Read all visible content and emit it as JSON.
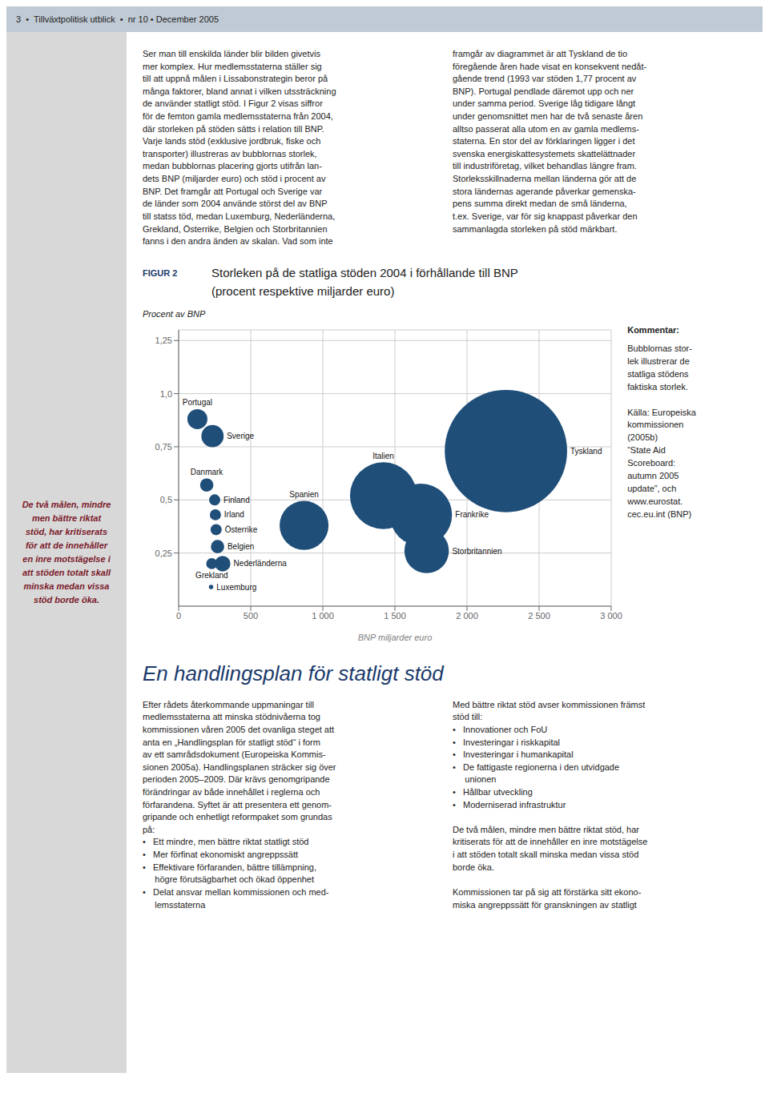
{
  "chart_data": {
    "type": "scatter",
    "title": "Storleken på de statliga stöden 2004 i förhållande till BNP",
    "subtitle": "(procent respektive miljarder euro)",
    "xlabel": "BNP miljarder euro",
    "ylabel": "Procent av BNP",
    "xlim": [
      0,
      3000
    ],
    "ylim": [
      0,
      1.3
    ],
    "xticks": [
      0,
      500,
      {
        "value": 1000,
        "label": "1 000"
      },
      {
        "value": 1500,
        "label": "1 500"
      },
      {
        "value": 2000,
        "label": "2 000"
      },
      {
        "value": 2500,
        "label": "2 500"
      },
      {
        "value": 3000,
        "label": "3 000"
      }
    ],
    "yticks": [
      {
        "value": 0.25,
        "label": "0,25"
      },
      {
        "value": 0.5,
        "label": "0,5"
      },
      {
        "value": 0.75,
        "label": "0,75"
      },
      {
        "value": 1.0,
        "label": "1,0"
      },
      {
        "value": 1.25,
        "label": "1,25"
      }
    ],
    "grid": true,
    "color": "#1f4e79",
    "names": [
      "Portugal",
      "Sverige",
      "Danmark",
      "Finland",
      "Irland",
      "Österrike",
      "Belgien",
      "Grekland",
      "Nederländerna",
      "Luxemburg",
      "Spanien",
      "Italien",
      "Frankrike",
      "Storbritannien",
      "Tyskland"
    ],
    "x": [
      130,
      235,
      195,
      250,
      255,
      260,
      270,
      230,
      305,
      225,
      870,
      1420,
      1680,
      1720,
      2270
    ],
    "values": [
      0.88,
      0.8,
      0.57,
      0.5,
      0.43,
      0.36,
      0.28,
      0.2,
      0.2,
      0.09,
      0.38,
      0.52,
      0.43,
      0.26,
      0.73
    ],
    "sizes": [
      9,
      10,
      6,
      5,
      5,
      5,
      6,
      5,
      7,
      2,
      22,
      30,
      28,
      20,
      55
    ],
    "annotations": [
      "3  •  Tillväxtpolitisk utblick  •  nr 10 • December 2005",
      "De två målen, mindre\nmen bättre riktat\nstöd, har kritiserats\nför att de innehåller\nen inre motstägelse i\natt stöden totalt skall\nminska medan vissa\nstöd borde öka.",
      "Ser man till enskilda länder blir bilden givetvis\nmer komplex. Hur medlemsstaterna ställer sig\ntill att uppnå målen i Lissabonstrategin beror på\nmånga faktorer, bland annat i vilken utssträckning\nde använder statligt stöd. I Figur 2 visas siffror\nför de femton gamla medlemsstaterna från 2004,\ndär storleken på stöden sätts i relation till BNP.\nVarje lands stöd (exklusive jordbruk, fiske och\ntransporter) illustreras av bubblornas storlek,\nmedan bubblornas placering gjorts utifrån lan-\ndets BNP (miljarder euro) och stöd i procent av\nBNP. Det framgår att Portugal och Sverige var\nde länder som 2004 använde störst del av BNP\ntill statss töd, medan Luxemburg, Nederländerna,\nGrekland, Österrike, Belgien och Storbritannien\nfanns i den andra änden av skalan. Vad som inte",
      "framgår av diagrammet är att Tyskland de tio\nföregående åren hade visat en konsekvent nedåt-\ngående trend (1993 var stöden 1,77 procent av\nBNP). Portugal pendlade däremot upp och ner\nunder samma period. Sverige låg tidigare långt\nunder genomsnittet men har de två senaste åren\nalltso passerat alla utom en av gamla medlems-\nstaterna. En stor del av förklaringen ligger i det\nsvenska energiskattesystemets skattelättnader\ntill industriföretag, vilket behandlas längre fram.\nStorleksskillnaderna mellan länderna gör att de\nstora ländernas agerande påverkar gemenska-\npens summa direkt medan de små länderna,\nt.ex. Sverige, var för sig knappast påverkar den\nsammanlagda storleken på stöd märkbart.",
      "FIGUR 2",
      "Kommentar:",
      "Bubblornas stor-\nlek illustrerar de\nstatliga stödens\nfaktiska storlek.",
      "Källa: Europeiska\nkommissionen\n(2005b)\n“State Aid\nScoreboard:\nautumn 2005\nupdate”, och\nwww.eurostat.\ncec.eu.int (BNP)",
      "En handlingsplan för statligt stöd",
      "Efter rådets återkommande uppmaningar till\nmedlemsstaterna att minska stödnivåerna tog\nkommissionen våren 2005 det ovanliga steget att\nanta en „Handlingsplan för statligt stöd“ i form\nav ett samrådsdokument (Europeiska Kommis-\nsionen 2005a). Handlingsplanen sträcker sig över\nperioden 2005–2009. Där krävs genomgripande\nförändringar av både innehållet i reglerna och\nförfarandena. Syftet är att presentera ett genom-\ngripande och enhetligt reformpaket som grundas\npå:\n•   Ett mindre, men bättre riktat statligt stöd\n•   Mer förfinat ekonomiskt angreppssätt\n•   Effektivare förfaranden, bättre tillämpning,\n     högre förutsägbarhet och ökad öppenhet\n•   Delat ansvar mellan kommissionen och med-\n     lemsstaterna",
      "Med bättre riktat stöd avser kommissionen främst\nstöd till:\n•   Innovationer och FoU\n•   Investeringar i riskkapital\n•   Investeringar i humankapital\n•   De fattigaste regionerna i den utvidgade\n     unionen\n•   Hållbar utveckling\n•   Moderniserad infrastruktur\n\nDe två målen, mindre men bättre riktat stöd, har\nkritiserats för att de innehåller en inre motstägelse\ni att stöden totalt skall minska medan vissa stöd\nborde öka.\n\nKommissionen tar på sig att förstärka sitt ekono-\nmiska angreppssätt för granskningen av statligt"
    ]
  }
}
